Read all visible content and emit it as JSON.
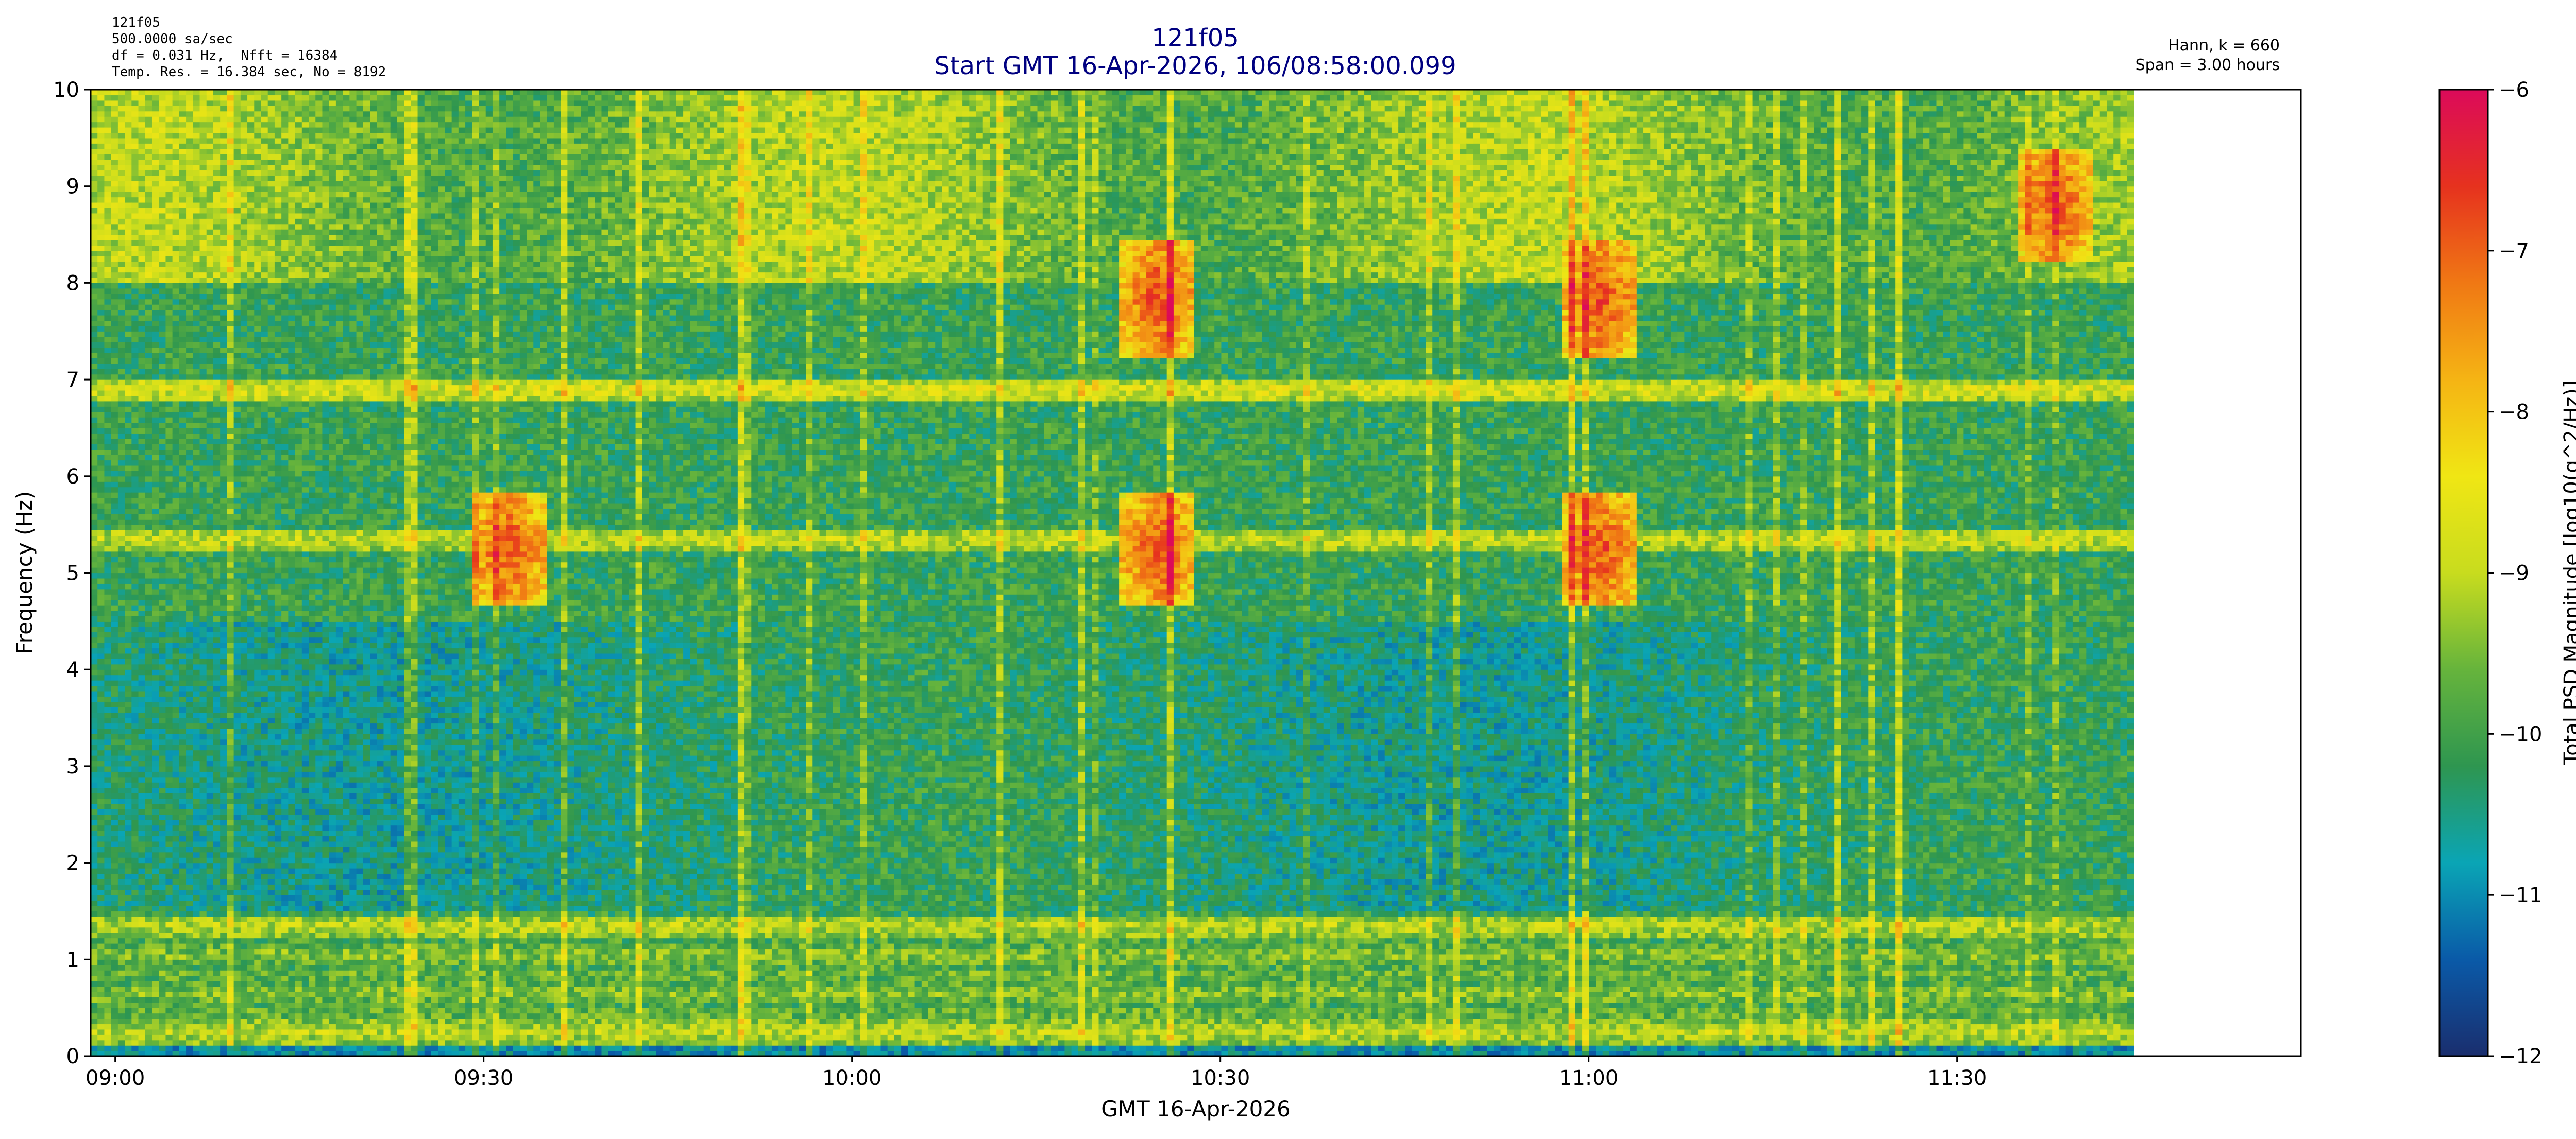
{
  "header": {
    "meta_left": [
      "121f05",
      "500.0000 sa/sec",
      "df = 0.031 Hz,  Nfft = 16384",
      "Temp. Res. = 16.384 sec, No = 8192"
    ],
    "meta_right": [
      "Hann, k = 660",
      "Span = 3.00 hours"
    ],
    "title": "121f05",
    "subtitle": "Start GMT 16-Apr-2026, 106/08:58:00.099"
  },
  "chart_data": {
    "type": "heatmap",
    "title": "121f05",
    "subtitle": "Start GMT 16-Apr-2026, 106/08:58:00.099",
    "xlabel": "GMT 16-Apr-2026",
    "ylabel": "Frequency (Hz)",
    "colorbar_label": "Total PSD Magnitude [log10(g^2/Hz)]",
    "x_ticks": [
      "09:00",
      "09:30",
      "10:00",
      "10:30",
      "11:00",
      "11:30"
    ],
    "x_range_minutes_after_0900": [
      -2,
      178
    ],
    "data_extent_minutes_after_0900": [
      -2,
      164.4
    ],
    "ylim": [
      0,
      10
    ],
    "y_ticks": [
      0,
      1,
      2,
      3,
      4,
      5,
      6,
      7,
      8,
      9,
      10
    ],
    "clim": [
      -12,
      -6
    ],
    "colorbar_ticks": [
      -6,
      -7,
      -8,
      -9,
      -10,
      -11,
      -12
    ],
    "colormap": [
      "#1a2e6e",
      "#0a5aa8",
      "#0aa5b5",
      "#2e9650",
      "#66b43c",
      "#c8dc1e",
      "#f0e614",
      "#f5b414",
      "#f07814",
      "#e6321e",
      "#dc0a5a"
    ],
    "features": {
      "horizontal_lines_hz": [
        {
          "f": 0.25,
          "level": -9.0
        },
        {
          "f": 0.45,
          "level": -9.6
        },
        {
          "f": 0.65,
          "level": -9.4
        },
        {
          "f": 0.85,
          "level": -9.6
        },
        {
          "f": 1.05,
          "level": -9.4
        },
        {
          "f": 1.25,
          "level": -9.7
        },
        {
          "f": 1.35,
          "level": -9.0
        },
        {
          "f": 5.35,
          "level": -8.9
        },
        {
          "f": 6.9,
          "level": -8.7
        }
      ],
      "high_energy_band_hz": [
        8.0,
        10.0
      ],
      "low_energy_band_hz": [
        1.5,
        4.5
      ],
      "hotspots": [
        {
          "t_min": 32,
          "f": 5.25
        },
        {
          "t_min": 85,
          "f": 5.25
        },
        {
          "t_min": 85,
          "f": 7.85
        },
        {
          "t_min": 121,
          "f": 5.25
        },
        {
          "t_min": 121,
          "f": 7.85
        },
        {
          "t_min": 158,
          "f": 8.8
        }
      ]
    }
  }
}
